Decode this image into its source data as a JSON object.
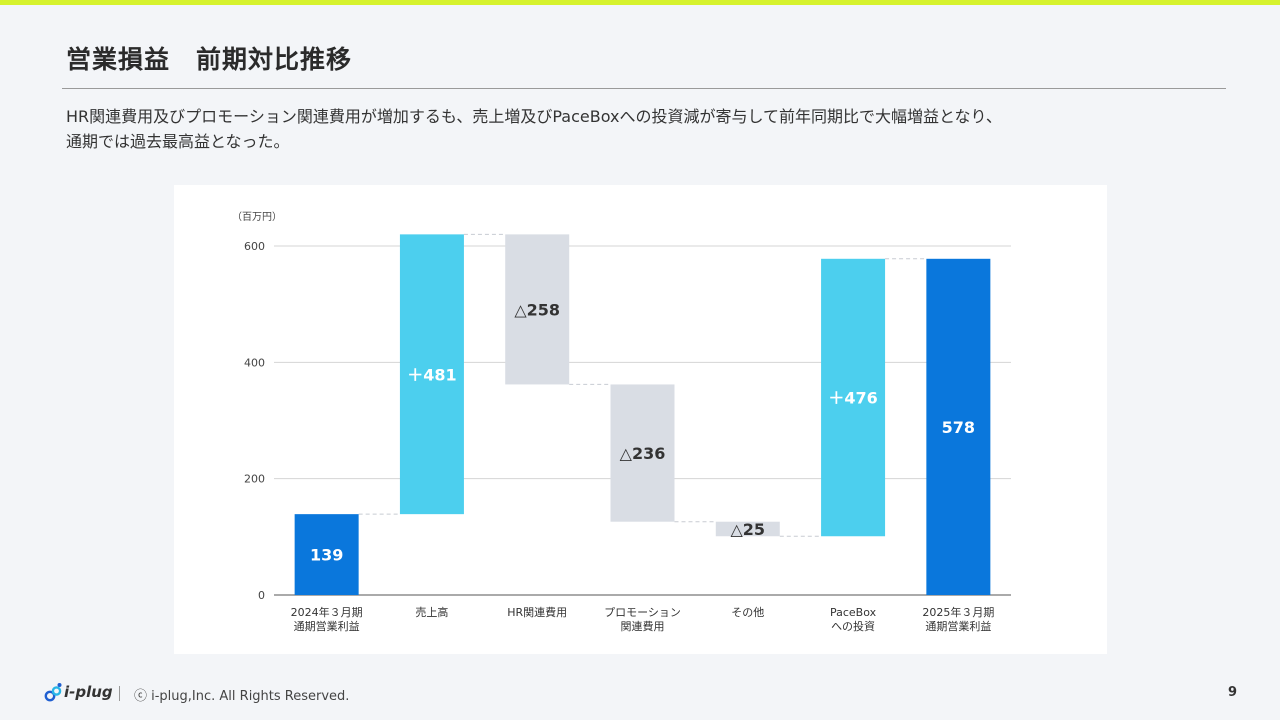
{
  "slide": {
    "title": "営業損益　前期対比推移",
    "subtitle_lines": [
      "HR関連費用及びプロモーション関連費用が増加するも、売上増及びPaceBoxへの投資減が寄与して前年同期比で大幅増益となり、",
      "通期では過去最高益となった。"
    ]
  },
  "footer": {
    "logo_text": "i-plug",
    "copyright": "ⓒ i-plug,Inc. All Rights Reserved.",
    "page_number": "9"
  },
  "colors": {
    "accent_bar": "#d6f22e",
    "total": "#0a77dc",
    "increase": "#4ccfee",
    "decrease": "#d9dde4",
    "grid": "#d4d4d4",
    "connector": "#c8ccd2"
  },
  "chart_data": {
    "type": "waterfall",
    "unit_label": "（百万円）",
    "ylim": [
      0,
      600
    ],
    "yticks": [
      0,
      200,
      400,
      600
    ],
    "grid": true,
    "steps": [
      {
        "category": [
          "2024年３月期",
          "通期営業利益"
        ],
        "kind": "total",
        "start": 0,
        "end": 139,
        "label": "139"
      },
      {
        "category": [
          "売上高"
        ],
        "kind": "increase",
        "start": 139,
        "end": 620,
        "label": "＋481"
      },
      {
        "category": [
          "HR関連費用"
        ],
        "kind": "decrease",
        "start": 620,
        "end": 362,
        "label": "△258"
      },
      {
        "category": [
          "プロモーション",
          "関連費用"
        ],
        "kind": "decrease",
        "start": 362,
        "end": 126,
        "label": "△236"
      },
      {
        "category": [
          "その他"
        ],
        "kind": "decrease",
        "start": 126,
        "end": 101,
        "label": "△25"
      },
      {
        "category": [
          "PaceBox",
          "への投資"
        ],
        "kind": "increase",
        "start": 101,
        "end": 578,
        "label": "＋476"
      },
      {
        "category": [
          "2025年３月期",
          "通期営業利益"
        ],
        "kind": "total",
        "start": 0,
        "end": 578,
        "label": "578"
      }
    ]
  }
}
